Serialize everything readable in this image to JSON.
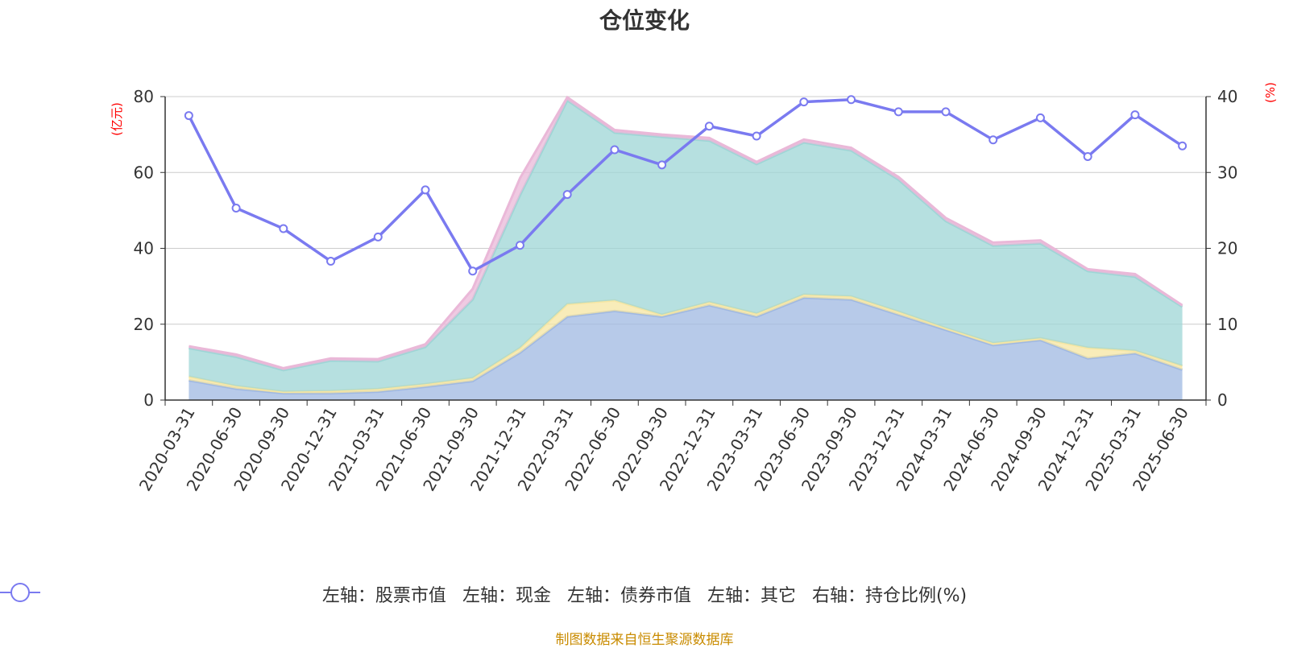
{
  "title": "仓位变化",
  "left_axis_unit": "(亿元)",
  "right_axis_unit": "(%)",
  "source": "制图数据来自恒生聚源数据库",
  "chart_data": {
    "type": "area",
    "categories": [
      "2020-03-31",
      "2020-06-30",
      "2020-09-30",
      "2020-12-31",
      "2021-03-31",
      "2021-06-30",
      "2021-09-30",
      "2021-12-31",
      "2022-03-31",
      "2022-06-30",
      "2022-09-30",
      "2022-12-31",
      "2023-03-31",
      "2023-06-30",
      "2023-09-30",
      "2023-12-31",
      "2024-03-31",
      "2024-06-30",
      "2024-09-30",
      "2024-12-31",
      "2025-03-31",
      "2025-06-30"
    ],
    "left_ylim": [
      0,
      80
    ],
    "right_ylim": [
      0,
      40
    ],
    "left_ticks": [
      0,
      20,
      40,
      60,
      80
    ],
    "right_ticks": [
      0,
      10,
      20,
      30,
      40
    ],
    "grid": true,
    "legend_position": "bottom",
    "series": [
      {
        "name": "左轴：股票市值",
        "axis": "left",
        "stack": true,
        "color": "#9fb8e2",
        "values": [
          5.2,
          3.0,
          1.8,
          1.8,
          2.2,
          3.5,
          5.0,
          12.5,
          22.0,
          23.5,
          22.0,
          25.0,
          22.0,
          27.0,
          26.5,
          22.5,
          18.5,
          14.5,
          15.8,
          11.0,
          12.3,
          8.0
        ]
      },
      {
        "name": "左轴：现金",
        "axis": "left",
        "stack": true,
        "color": "#f6e6a2",
        "values": [
          1.0,
          0.7,
          0.4,
          0.6,
          0.7,
          0.7,
          0.8,
          1.2,
          3.3,
          2.8,
          0.5,
          0.8,
          0.8,
          0.8,
          0.8,
          0.8,
          0.5,
          0.5,
          0.5,
          2.8,
          0.7,
          1.0
        ]
      },
      {
        "name": "左轴：债券市值",
        "axis": "left",
        "stack": true,
        "color": "#9dd6d6",
        "values": [
          7.5,
          7.7,
          5.7,
          8.0,
          7.3,
          9.8,
          20.7,
          40.3,
          53.7,
          44.2,
          46.9,
          42.6,
          39.4,
          40.1,
          38.5,
          34.8,
          28.2,
          25.7,
          25.0,
          20.2,
          19.5,
          15.6
        ]
      },
      {
        "name": "左轴：其它",
        "axis": "left",
        "stack": true,
        "color": "#eab8d8",
        "values": [
          0.5,
          0.6,
          0.5,
          0.6,
          0.6,
          0.7,
          2.8,
          4.5,
          0.8,
          0.7,
          0.6,
          0.7,
          0.6,
          0.8,
          0.7,
          0.7,
          0.8,
          0.8,
          0.8,
          0.5,
          0.7,
          0.4
        ]
      },
      {
        "name": "右轴：持仓比例(%)",
        "axis": "right",
        "type": "line",
        "color": "#7a7af0",
        "values": [
          37.5,
          25.3,
          22.6,
          18.3,
          21.5,
          27.7,
          17.0,
          20.4,
          27.1,
          33.0,
          31.0,
          36.1,
          34.8,
          39.3,
          39.6,
          38.0,
          38.0,
          34.3,
          37.2,
          32.1,
          37.6,
          33.5
        ]
      }
    ]
  }
}
